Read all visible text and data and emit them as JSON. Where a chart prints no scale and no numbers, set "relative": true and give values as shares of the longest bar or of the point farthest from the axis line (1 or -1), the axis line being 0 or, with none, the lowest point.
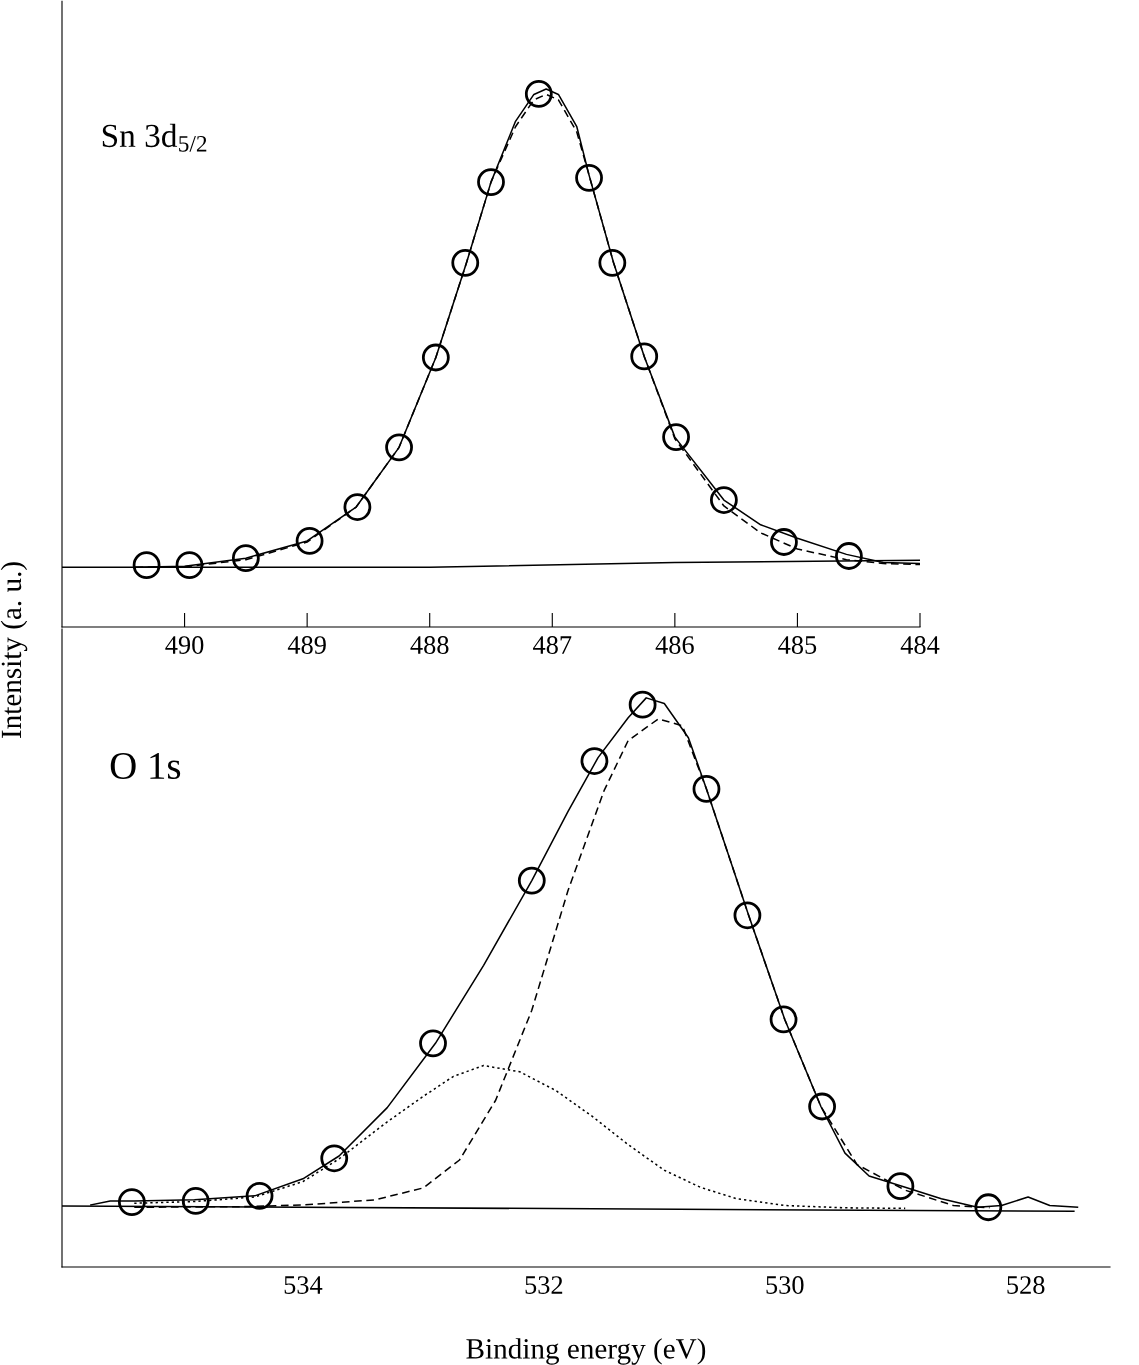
{
  "chart_data": [
    {
      "type": "line",
      "relative": true,
      "ylabel": "Intensity (a. u.)",
      "annotations": [
        "Sn 3d$_{5/2}$"
      ],
      "xlim": [
        491.0,
        484
      ],
      "xticks": [
        490,
        489,
        488,
        487,
        486,
        485,
        484
      ],
      "grid": false,
      "legend": false,
      "tick_labels": "x",
      "series": [
        {
          "line_style": "solid",
          "color": "#000000",
          "x": [
            491.0,
            488.0,
            486.0,
            484.0
          ],
          "values": [
            0.111,
            0.111,
            0.12,
            0.124
          ]
        },
        {
          "line_style": "solid",
          "color": "#000000",
          "x": [
            490.4,
            490.0,
            489.5,
            489.0,
            488.6,
            488.25,
            487.95,
            487.7,
            487.5,
            487.3,
            487.15,
            487.05,
            486.95,
            486.8,
            486.7,
            486.5,
            486.25,
            486.0,
            485.6,
            485.3,
            485.0,
            484.6,
            484.3,
            484.0
          ],
          "values": [
            0.111,
            0.113,
            0.128,
            0.16,
            0.223,
            0.334,
            0.501,
            0.677,
            0.827,
            0.94,
            0.99,
            1.0,
            0.99,
            0.93,
            0.84,
            0.677,
            0.503,
            0.353,
            0.236,
            0.19,
            0.165,
            0.135,
            0.12,
            0.118
          ]
        },
        {
          "line_style": "dashed",
          "color": "#000000",
          "x": [
            490.4,
            490.0,
            489.5,
            489.0,
            488.6,
            488.25,
            487.95,
            487.7,
            487.5,
            487.3,
            487.15,
            487.05,
            486.95,
            486.8,
            486.7,
            486.5,
            486.25,
            486.0,
            485.6,
            485.3,
            485.0,
            484.6,
            484.3,
            484.0
          ],
          "values": [
            0.111,
            0.112,
            0.125,
            0.158,
            0.223,
            0.334,
            0.501,
            0.677,
            0.827,
            0.93,
            0.98,
            0.99,
            0.98,
            0.92,
            0.84,
            0.677,
            0.503,
            0.35,
            0.225,
            0.175,
            0.145,
            0.125,
            0.118,
            0.116
          ]
        },
        {
          "type": "scatter",
          "marker": "circle",
          "color": "#000000",
          "x": [
            490.31,
            489.96,
            489.5,
            488.98,
            488.59,
            488.25,
            487.95,
            487.71,
            487.5,
            487.11,
            486.7,
            486.51,
            486.25,
            485.99,
            485.6,
            485.11,
            484.58
          ],
          "values": [
            0.115,
            0.115,
            0.128,
            0.16,
            0.223,
            0.334,
            0.501,
            0.677,
            0.827,
            0.991,
            0.835,
            0.677,
            0.503,
            0.353,
            0.236,
            0.158,
            0.132
          ]
        }
      ]
    },
    {
      "type": "line",
      "relative": true,
      "xlabel": "Binding energy (eV)",
      "annotations": [
        "O 1s"
      ],
      "xlim": [
        536.0,
        527.3
      ],
      "xticks": [
        534,
        532,
        530,
        528
      ],
      "grid": false,
      "legend": false,
      "tick_labels": "x",
      "series": [
        {
          "line_style": "solid",
          "color": "#000000",
          "x": [
            536.0,
            527.6
          ],
          "values": [
            0.107,
            0.098
          ]
        },
        {
          "line_style": "solid",
          "color": "#000000",
          "x": [
            535.76,
            535.6,
            535.4,
            534.9,
            534.4,
            534.0,
            533.7,
            533.3,
            532.9,
            532.5,
            532.1,
            531.8,
            531.55,
            531.3,
            531.15,
            531.0,
            530.8,
            530.65,
            530.3,
            530.0,
            529.7,
            529.5,
            529.3,
            529.0,
            528.7,
            528.4,
            528.2,
            527.98,
            527.8,
            527.57
          ],
          "values": [
            0.109,
            0.116,
            0.116,
            0.118,
            0.125,
            0.155,
            0.195,
            0.28,
            0.393,
            0.53,
            0.679,
            0.8,
            0.895,
            0.965,
            1.0,
            0.99,
            0.93,
            0.84,
            0.618,
            0.435,
            0.282,
            0.2,
            0.16,
            0.14,
            0.12,
            0.105,
            0.108,
            0.123,
            0.108,
            0.105
          ]
        },
        {
          "line_style": "dashed",
          "color": "#000000",
          "x": [
            535.4,
            534.5,
            534.0,
            533.4,
            533.0,
            532.7,
            532.4,
            532.1,
            531.8,
            531.5,
            531.3,
            531.05,
            530.85,
            530.65,
            530.3,
            530.0,
            529.7,
            529.4,
            529.0,
            528.6,
            528.3
          ],
          "values": [
            0.105,
            0.106,
            0.109,
            0.118,
            0.139,
            0.188,
            0.293,
            0.451,
            0.661,
            0.837,
            0.925,
            0.963,
            0.951,
            0.84,
            0.618,
            0.435,
            0.282,
            0.18,
            0.135,
            0.108,
            0.104
          ]
        },
        {
          "line_style": "dotted",
          "color": "#000000",
          "x": [
            535.4,
            534.9,
            534.4,
            534.0,
            533.7,
            533.3,
            533.0,
            532.75,
            532.5,
            532.2,
            531.9,
            531.6,
            531.3,
            531.0,
            530.7,
            530.4,
            530.0,
            529.5,
            529.0
          ],
          "values": [
            0.112,
            0.115,
            0.123,
            0.15,
            0.19,
            0.255,
            0.3,
            0.335,
            0.354,
            0.343,
            0.31,
            0.265,
            0.215,
            0.17,
            0.14,
            0.12,
            0.108,
            0.104,
            0.103
          ]
        },
        {
          "type": "scatter",
          "marker": "circle",
          "color": "#000000",
          "x": [
            535.42,
            534.89,
            534.36,
            533.74,
            532.92,
            532.1,
            531.58,
            531.18,
            530.65,
            530.31,
            530.01,
            529.69,
            529.04,
            528.31
          ],
          "values": [
            0.114,
            0.116,
            0.125,
            0.191,
            0.393,
            0.679,
            0.889,
            0.988,
            0.84,
            0.618,
            0.435,
            0.282,
            0.142,
            0.105
          ]
        }
      ]
    }
  ]
}
